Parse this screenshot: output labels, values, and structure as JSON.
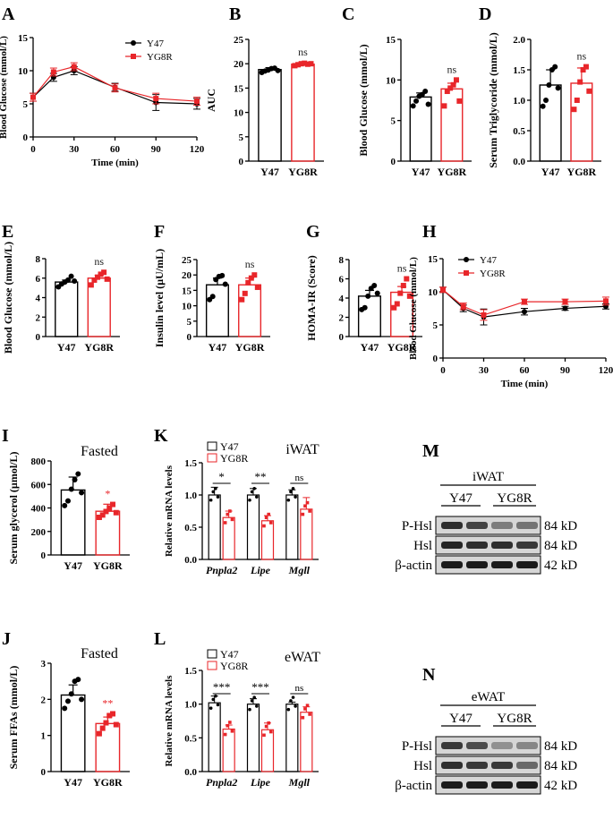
{
  "colors": {
    "y47": "#000000",
    "yg8r": "#e8262a",
    "blot_bg": "#d6d6d6"
  },
  "chart_data": [
    {
      "panel": "A",
      "type": "line",
      "title": "",
      "xlabel": "Time (min)",
      "ylabel": "Blood Glucose (mmol/L)",
      "xlim": [
        0,
        120
      ],
      "ylim": [
        0,
        15
      ],
      "xticks": [
        0,
        30,
        60,
        90,
        120
      ],
      "yticks": [
        0,
        5,
        10,
        15
      ],
      "x": [
        0,
        15,
        30,
        60,
        90,
        120
      ],
      "legend": [
        "Y47",
        "YG8R"
      ],
      "series": [
        {
          "name": "Y47",
          "values": [
            6.0,
            9.0,
            10.0,
            7.5,
            5.2,
            5.0
          ],
          "err": [
            0.6,
            0.6,
            0.6,
            0.6,
            1.2,
            0.8
          ]
        },
        {
          "name": "YG8R",
          "values": [
            6.0,
            9.8,
            10.6,
            7.4,
            5.8,
            5.4
          ],
          "err": [
            0.6,
            0.6,
            0.6,
            0.6,
            0.8,
            0.6
          ]
        }
      ]
    },
    {
      "panel": "B",
      "type": "bar",
      "ylabel": "AUC",
      "categories": [
        "Y47",
        "YG8R"
      ],
      "ylim": [
        0,
        25
      ],
      "yticks": [
        0,
        5,
        10,
        15,
        20,
        25
      ],
      "values": [
        18.8,
        19.9
      ],
      "err": [
        0.4,
        0.3
      ],
      "sig": "ns",
      "points": [
        [
          18.2,
          18.5,
          18.7,
          19.0,
          19.1,
          18.6
        ],
        [
          19.6,
          19.8,
          20.0,
          20.1,
          19.9,
          20.0
        ]
      ]
    },
    {
      "panel": "C",
      "type": "bar",
      "ylabel": "Blood Glucose (mmol/L)",
      "categories": [
        "Y47",
        "YG8R"
      ],
      "ylim": [
        0,
        15
      ],
      "yticks": [
        0,
        5,
        10,
        15
      ],
      "values": [
        7.9,
        8.9
      ],
      "err": [
        0.5,
        0.7
      ],
      "sig": "ns",
      "points": [
        [
          6.8,
          7.4,
          8.0,
          8.2,
          8.6,
          7.0
        ],
        [
          6.8,
          8.6,
          9.0,
          9.4,
          10.0,
          7.4
        ]
      ]
    },
    {
      "panel": "D",
      "type": "bar",
      "ylabel": "Serum Triglycoride (mmol/L)",
      "categories": [
        "Y47",
        "YG8R"
      ],
      "ylim": [
        0,
        2.0
      ],
      "yticks": [
        "0.0",
        "0.5",
        "1.0",
        "1.5",
        "2.0"
      ],
      "values": [
        1.25,
        1.28
      ],
      "err": [
        0.25,
        0.25
      ],
      "sig": "ns",
      "points": [
        [
          0.9,
          1.0,
          1.25,
          1.5,
          1.55,
          1.2
        ],
        [
          0.85,
          1.0,
          1.3,
          1.5,
          1.55,
          1.15
        ]
      ]
    },
    {
      "panel": "E",
      "type": "bar",
      "ylabel": "Blood Glucose (mmol/L)",
      "categories": [
        "Y47",
        "YG8R"
      ],
      "ylim": [
        0,
        8
      ],
      "yticks": [
        0,
        2,
        4,
        6,
        8
      ],
      "values": [
        5.6,
        6.0
      ],
      "err": [
        0.2,
        0.3
      ],
      "sig": "ns",
      "points": [
        [
          5.1,
          5.4,
          5.6,
          5.8,
          6.2,
          5.7
        ],
        [
          5.3,
          5.8,
          6.1,
          6.4,
          6.6,
          5.9
        ]
      ]
    },
    {
      "panel": "F",
      "type": "bar",
      "ylabel": "Insulin level (µU/mL)",
      "categories": [
        "Y47",
        "YG8R"
      ],
      "ylim": [
        0,
        25
      ],
      "yticks": [
        0,
        5,
        10,
        15,
        20,
        25
      ],
      "values": [
        16.8,
        16.8
      ],
      "err": [
        2.2,
        2.2
      ],
      "sig": "ns",
      "points": [
        [
          12.0,
          13.0,
          18.5,
          19.5,
          19.8,
          17.0
        ],
        [
          12.0,
          14.0,
          17.5,
          19.0,
          20.0,
          16.0
        ]
      ]
    },
    {
      "panel": "G",
      "type": "bar",
      "ylabel": "HOMA-IR (Score)",
      "categories": [
        "Y47",
        "YG8R"
      ],
      "ylim": [
        0,
        8
      ],
      "yticks": [
        0,
        2,
        4,
        6,
        8
      ],
      "values": [
        4.2,
        4.6
      ],
      "err": [
        0.6,
        0.6
      ],
      "sig": "ns",
      "points": [
        [
          2.8,
          3.0,
          4.2,
          5.0,
          5.3,
          4.5
        ],
        [
          3.0,
          3.4,
          4.5,
          5.3,
          6.0,
          4.2
        ]
      ]
    },
    {
      "panel": "H",
      "type": "line",
      "xlabel": "Time (min)",
      "ylabel": "Blood Glucose (mmol/L)",
      "xlim": [
        0,
        120
      ],
      "ylim": [
        0,
        15
      ],
      "xticks": [
        0,
        30,
        60,
        90,
        120
      ],
      "yticks": [
        0,
        5,
        10,
        15
      ],
      "x": [
        0,
        15,
        30,
        60,
        90,
        120
      ],
      "legend": [
        "Y47",
        "YG8R"
      ],
      "series": [
        {
          "name": "Y47",
          "values": [
            10.3,
            7.5,
            6.2,
            7.0,
            7.5,
            7.8
          ],
          "err": [
            0.4,
            0.5,
            1.2,
            0.5,
            0.3,
            0.4
          ]
        },
        {
          "name": "YG8R",
          "values": [
            10.3,
            7.8,
            6.5,
            8.5,
            8.5,
            8.6
          ],
          "err": [
            0.4,
            0.5,
            0.8,
            0.4,
            0.4,
            0.6
          ]
        }
      ]
    },
    {
      "panel": "I",
      "type": "bar",
      "title": "Fasted",
      "ylabel": "Serum glycerol (µmol/L)",
      "categories": [
        "Y47",
        "YG8R"
      ],
      "ylim": [
        0,
        800
      ],
      "yticks": [
        0,
        200,
        400,
        600,
        800
      ],
      "values": [
        553,
        372
      ],
      "err": [
        110,
        60
      ],
      "sig": "*",
      "points": [
        [
          420,
          460,
          560,
          640,
          690,
          530
        ],
        [
          320,
          340,
          370,
          400,
          430,
          360
        ]
      ]
    },
    {
      "panel": "J",
      "type": "bar",
      "title": "Fasted",
      "ylabel": "Serum FFAs (mmol/L)",
      "categories": [
        "Y47",
        "YG8R"
      ],
      "ylim": [
        0,
        3
      ],
      "yticks": [
        0,
        1,
        2,
        3
      ],
      "values": [
        2.12,
        1.33
      ],
      "err": [
        0.28,
        0.18
      ],
      "sig": "**",
      "points": [
        [
          1.75,
          1.95,
          2.15,
          2.5,
          2.55,
          2.0
        ],
        [
          1.05,
          1.2,
          1.35,
          1.55,
          1.6,
          1.3
        ]
      ]
    },
    {
      "panel": "K",
      "type": "bar",
      "title": "iWAT",
      "ylabel": "Relative mRNA levels",
      "categories": [
        "Pnpla2",
        "Lipe",
        "Mgll"
      ],
      "ylim": [
        0,
        1.5
      ],
      "yticks": [
        "0.0",
        "0.5",
        "1.0",
        "1.5"
      ],
      "series": [
        {
          "name": "Y47",
          "values": [
            1.0,
            1.0,
            1.0
          ],
          "err": [
            0.12,
            0.1,
            0.08
          ]
        },
        {
          "name": "YG8R",
          "values": [
            0.65,
            0.6,
            0.78
          ],
          "err": [
            0.1,
            0.08,
            0.18
          ]
        }
      ],
      "sig": [
        "*",
        "**",
        "ns"
      ]
    },
    {
      "panel": "L",
      "type": "bar",
      "title": "eWAT",
      "ylabel": "Relative mRNA levels",
      "categories": [
        "Pnpla2",
        "Lipe",
        "Mgll"
      ],
      "ylim": [
        0,
        1.5
      ],
      "yticks": [
        "0.0",
        "0.5",
        "1.0",
        "1.5"
      ],
      "series": [
        {
          "name": "Y47",
          "values": [
            1.02,
            1.0,
            1.0
          ],
          "err": [
            0.1,
            0.08,
            0.03
          ]
        },
        {
          "name": "YG8R",
          "values": [
            0.63,
            0.62,
            0.88
          ],
          "err": [
            0.06,
            0.1,
            0.08
          ]
        }
      ],
      "sig": [
        "***",
        "***",
        "ns"
      ]
    }
  ],
  "blots": [
    {
      "panel": "M",
      "tissue": "iWAT",
      "groups": [
        "Y47",
        "YG8R"
      ],
      "rows": [
        {
          "name": "P-Hsl",
          "kd": "84 kD",
          "intensities": [
            0.85,
            0.75,
            0.45,
            0.5
          ]
        },
        {
          "name": "Hsl",
          "kd": "84 kD",
          "intensities": [
            0.9,
            0.85,
            0.85,
            0.8
          ]
        },
        {
          "name": "β-actin",
          "kd": "42 kD",
          "intensities": [
            0.95,
            0.95,
            0.95,
            0.95
          ]
        }
      ]
    },
    {
      "panel": "N",
      "tissue": "eWAT",
      "groups": [
        "Y47",
        "YG8R"
      ],
      "rows": [
        {
          "name": "P-Hsl",
          "kd": "84 kD",
          "intensities": [
            0.8,
            0.7,
            0.35,
            0.4
          ]
        },
        {
          "name": "Hsl",
          "kd": "84 kD",
          "intensities": [
            0.85,
            0.8,
            0.8,
            0.55
          ]
        },
        {
          "name": "β-actin",
          "kd": "42 kD",
          "intensities": [
            0.95,
            0.95,
            0.95,
            0.95
          ]
        }
      ]
    }
  ]
}
